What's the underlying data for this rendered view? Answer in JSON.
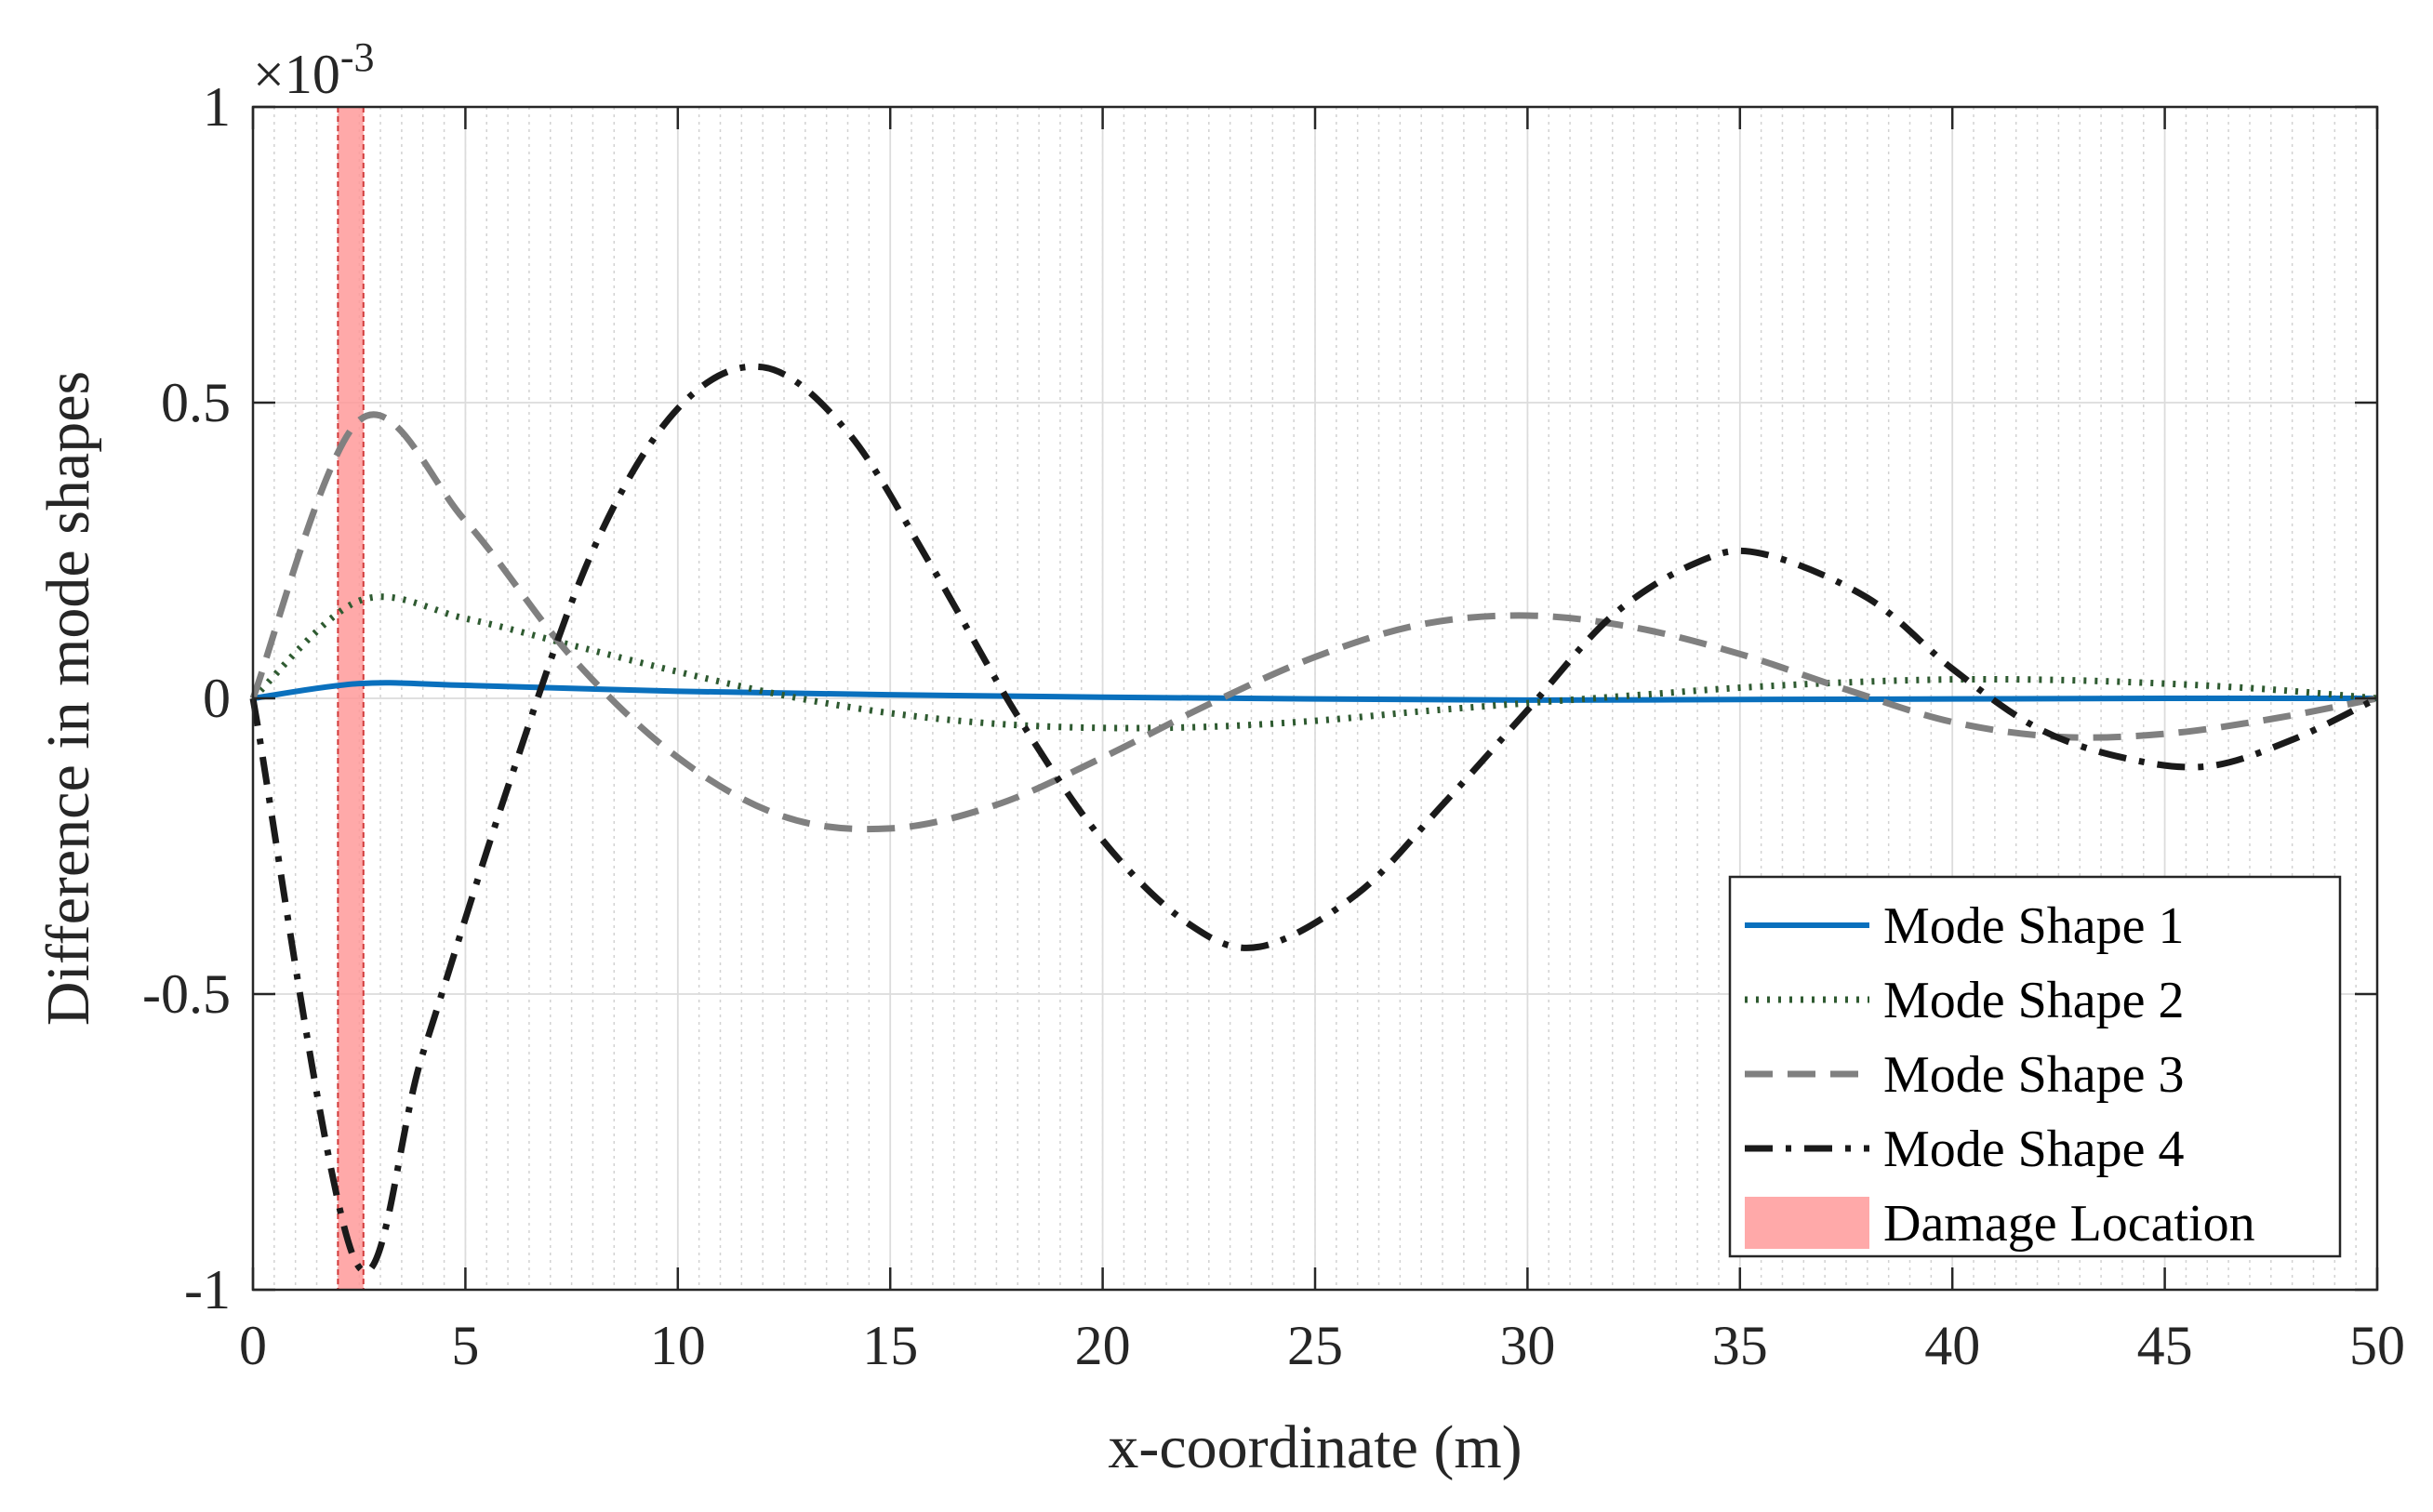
{
  "chart_data": {
    "type": "line",
    "title": "",
    "xlabel": "x-coordinate (m)",
    "ylabel": "Difference in mode shapes",
    "y_exponent_prefix": "×10",
    "y_exponent_power": "-3",
    "xlim": [
      0,
      50
    ],
    "ylim": [
      -1,
      1
    ],
    "xticks": [
      0,
      5,
      10,
      15,
      20,
      25,
      30,
      35,
      40,
      45,
      50
    ],
    "xtick_labels": [
      "0",
      "5",
      "10",
      "15",
      "20",
      "25",
      "30",
      "35",
      "40",
      "45",
      "50"
    ],
    "yticks": [
      -1,
      -0.5,
      0,
      0.5,
      1
    ],
    "ytick_labels": [
      "-1",
      "-0.5",
      "0",
      "0.5",
      "1"
    ],
    "minor_x_grid_step": 0.5,
    "grid": true,
    "legend_position": "bottom-right",
    "damage_location": {
      "label": "Damage Location",
      "x_start": 2.0,
      "x_end": 2.6,
      "color": "#ff9a9a"
    },
    "series": [
      {
        "name": "Mode Shape 1",
        "color": "#0a70bd",
        "style": "solid",
        "x": [
          0,
          2.5,
          5,
          10,
          15,
          20,
          25,
          30,
          35,
          40,
          45,
          50
        ],
        "y": [
          0,
          0.025,
          0.022,
          0.012,
          0.006,
          0.002,
          -0.001,
          -0.003,
          -0.002,
          -0.001,
          0.0,
          0
        ]
      },
      {
        "name": "Mode Shape 2",
        "color": "#2e5a30",
        "style": "dotted",
        "x": [
          0,
          2.5,
          5,
          7.5,
          10,
          12.5,
          15,
          17.5,
          20,
          22.5,
          25,
          27.5,
          30,
          32.5,
          35,
          37.5,
          40,
          42.5,
          45,
          47.5,
          50
        ],
        "y": [
          0,
          0.165,
          0.135,
          0.09,
          0.045,
          0.005,
          -0.025,
          -0.043,
          -0.05,
          -0.048,
          -0.038,
          -0.022,
          -0.008,
          0.005,
          0.018,
          0.027,
          0.032,
          0.031,
          0.025,
          0.015,
          0
        ]
      },
      {
        "name": "Mode Shape 3",
        "color": "#808080",
        "style": "dashed",
        "x": [
          0,
          2.5,
          5,
          7.5,
          10,
          12.5,
          15,
          17.5,
          20,
          22.5,
          25,
          27.5,
          30,
          32.5,
          35,
          37.5,
          40,
          42.5,
          45,
          47.5,
          50
        ],
        "y": [
          0,
          0.47,
          0.3,
          0.07,
          -0.1,
          -0.2,
          -0.22,
          -0.18,
          -0.1,
          -0.01,
          0.07,
          0.125,
          0.14,
          0.12,
          0.075,
          0.015,
          -0.04,
          -0.065,
          -0.06,
          -0.035,
          0
        ]
      },
      {
        "name": "Mode Shape 4",
        "color": "#1a1a1a",
        "style": "dashdot",
        "x": [
          0,
          2.4,
          4,
          6,
          8,
          10,
          12,
          14,
          16,
          18,
          20,
          22,
          23.7,
          26,
          28,
          30,
          32,
          34,
          35.5,
          38,
          40,
          42,
          44,
          46,
          48,
          50
        ],
        "y": [
          0,
          -0.95,
          -0.6,
          -0.15,
          0.25,
          0.49,
          0.56,
          0.45,
          0.22,
          -0.03,
          -0.24,
          -0.38,
          -0.42,
          -0.33,
          -0.18,
          -0.02,
          0.14,
          0.23,
          0.245,
          0.17,
          0.05,
          -0.05,
          -0.1,
          -0.115,
          -0.07,
          0
        ]
      }
    ]
  }
}
